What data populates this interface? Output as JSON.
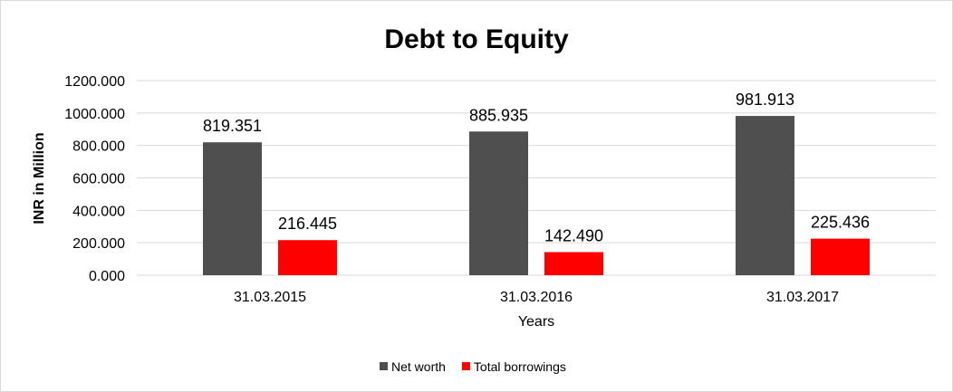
{
  "chart_data": {
    "type": "bar",
    "title": "Debt to Equity",
    "xlabel": "Years",
    "ylabel": "INR in Million",
    "categories": [
      "31.03.2015",
      "31.03.2016",
      "31.03.2017"
    ],
    "series": [
      {
        "name": "Net worth",
        "color": "#4f4f4f",
        "values": [
          819.351,
          885.935,
          981.913
        ],
        "labels": [
          "819.351",
          "885.935",
          "981.913"
        ]
      },
      {
        "name": "Total borrowings",
        "color": "#ff0000",
        "values": [
          216.445,
          142.49,
          225.436
        ],
        "labels": [
          "216.445",
          "142.490",
          "225.436"
        ]
      }
    ],
    "ylim": [
      0,
      1200
    ],
    "yticks": [
      "0.000",
      "200.000",
      "400.000",
      "600.000",
      "800.000",
      "1000.000",
      "1200.000"
    ],
    "grid": true,
    "legend_position": "bottom"
  }
}
